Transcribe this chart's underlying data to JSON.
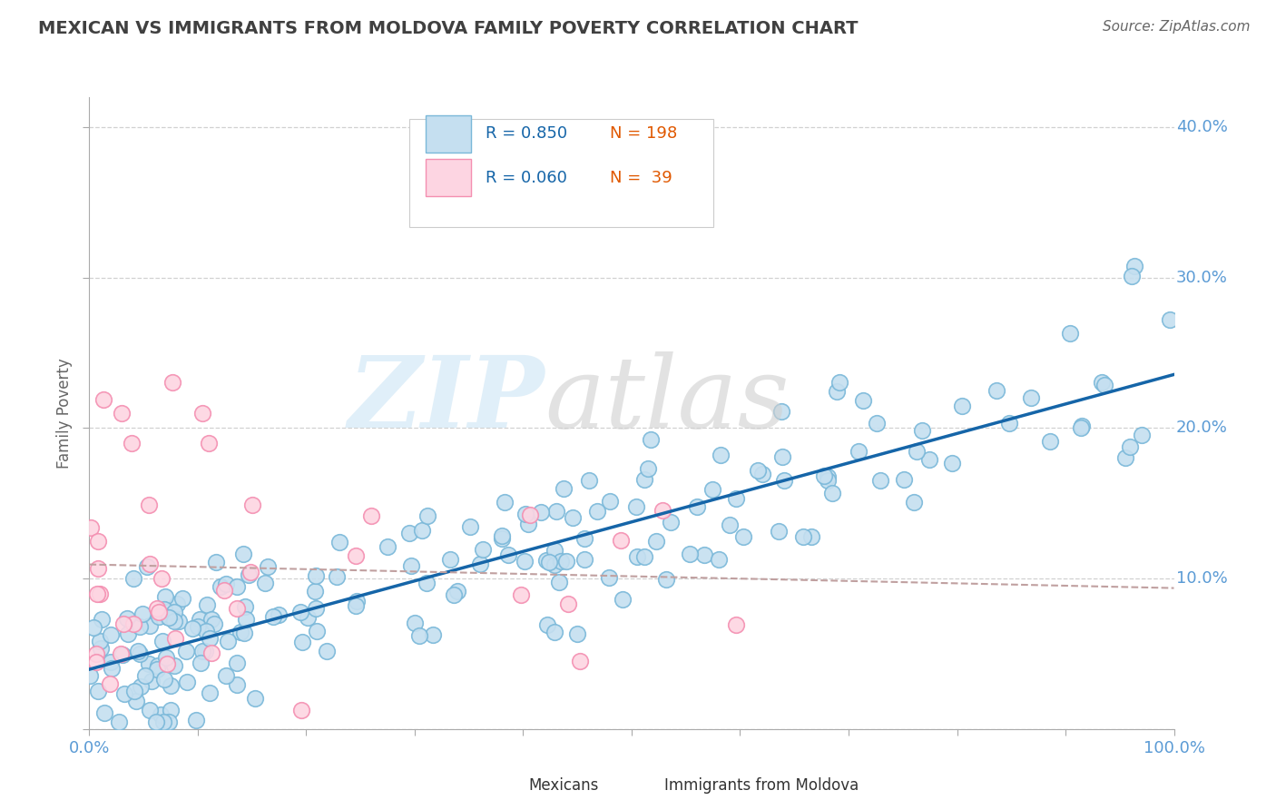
{
  "title": "MEXICAN VS IMMIGRANTS FROM MOLDOVA FAMILY POVERTY CORRELATION CHART",
  "source": "Source: ZipAtlas.com",
  "ylabel": "Family Poverty",
  "blue_color": "#7ab8d9",
  "blue_fill": "#c5dff0",
  "pink_color": "#f48fb1",
  "pink_fill": "#fdd5e2",
  "line_blue": "#1565a8",
  "line_dashed": "#c0a0a0",
  "legend_R_blue": "0.850",
  "legend_N_blue": "198",
  "legend_R_pink": "0.060",
  "legend_N_pink": "39",
  "title_color": "#404040",
  "axis_label_color": "#5b9bd5",
  "grid_color": "#cccccc",
  "legend_text_blue": "#1565a8",
  "legend_text_n": "#e05800"
}
